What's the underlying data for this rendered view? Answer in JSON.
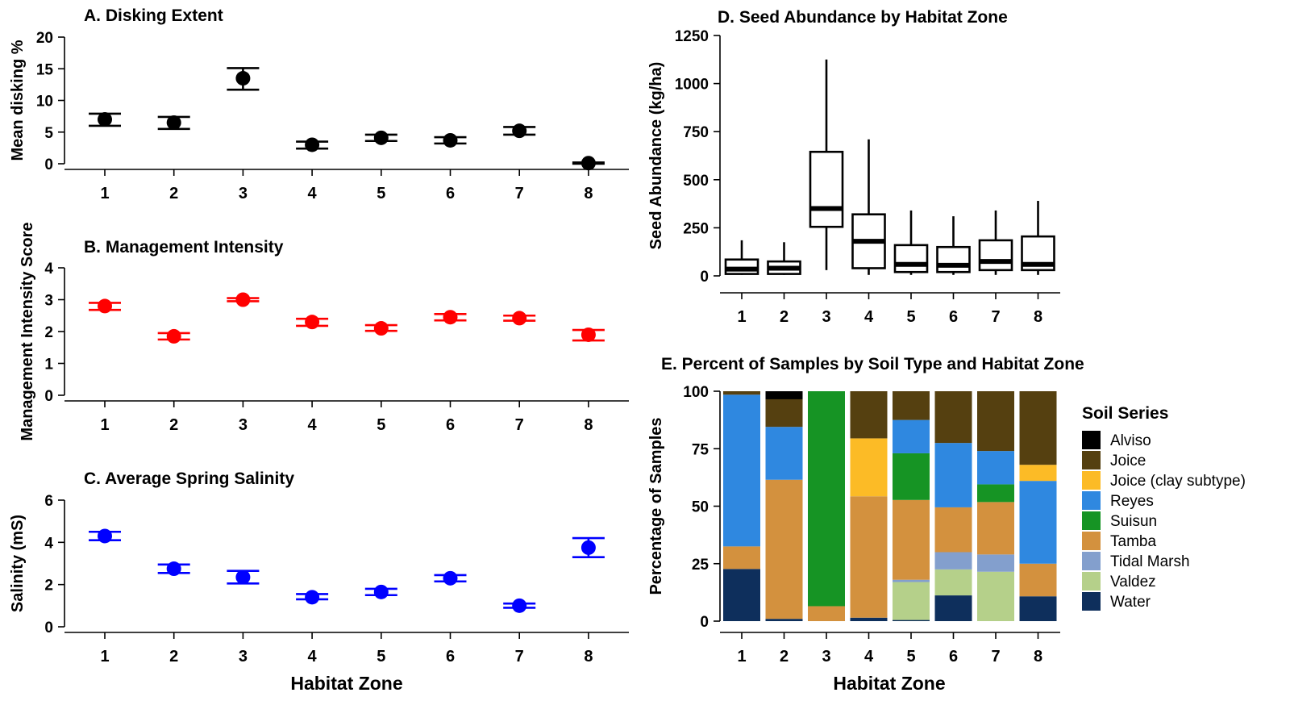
{
  "chart_data": [
    {
      "id": "A",
      "type": "scatter",
      "title": "A. Disking Extent",
      "xlabel": "",
      "ylabel": "Mean disking %",
      "categories": [
        "1",
        "2",
        "3",
        "4",
        "5",
        "6",
        "7",
        "8"
      ],
      "y_ticks": [
        "0",
        "5",
        "10",
        "15",
        "20"
      ],
      "ylim": [
        0,
        20
      ],
      "color": "#000000",
      "points": [
        {
          "x": "1",
          "mean": 7.0,
          "lo": 6.0,
          "hi": 7.9
        },
        {
          "x": "2",
          "mean": 6.5,
          "lo": 5.5,
          "hi": 7.4
        },
        {
          "x": "3",
          "mean": 13.5,
          "lo": 11.7,
          "hi": 15.1
        },
        {
          "x": "4",
          "mean": 3.0,
          "lo": 2.4,
          "hi": 3.5
        },
        {
          "x": "5",
          "mean": 4.1,
          "lo": 3.6,
          "hi": 4.6
        },
        {
          "x": "6",
          "mean": 3.7,
          "lo": 3.2,
          "hi": 4.2
        },
        {
          "x": "7",
          "mean": 5.2,
          "lo": 4.6,
          "hi": 5.8
        },
        {
          "x": "8",
          "mean": 0.1,
          "lo": 0.0,
          "hi": 0.2
        }
      ]
    },
    {
      "id": "B",
      "type": "scatter",
      "title": "B. Management Intensity",
      "xlabel": "",
      "ylabel": "Management Intensity Score",
      "categories": [
        "1",
        "2",
        "3",
        "4",
        "5",
        "6",
        "7",
        "8"
      ],
      "y_ticks": [
        "0",
        "1",
        "2",
        "3",
        "4"
      ],
      "ylim": [
        0,
        4
      ],
      "color": "#ff0000",
      "points": [
        {
          "x": "1",
          "mean": 2.8,
          "lo": 2.68,
          "hi": 2.9
        },
        {
          "x": "2",
          "mean": 1.85,
          "lo": 1.75,
          "hi": 1.95
        },
        {
          "x": "3",
          "mean": 3.0,
          "lo": 2.95,
          "hi": 3.05
        },
        {
          "x": "4",
          "mean": 2.3,
          "lo": 2.18,
          "hi": 2.4
        },
        {
          "x": "5",
          "mean": 2.1,
          "lo": 2.02,
          "hi": 2.2
        },
        {
          "x": "6",
          "mean": 2.45,
          "lo": 2.35,
          "hi": 2.55
        },
        {
          "x": "7",
          "mean": 2.42,
          "lo": 2.34,
          "hi": 2.5
        },
        {
          "x": "8",
          "mean": 1.9,
          "lo": 1.72,
          "hi": 2.05
        }
      ]
    },
    {
      "id": "C",
      "type": "scatter",
      "title": "C. Average Spring Salinity",
      "xlabel": "Habitat Zone",
      "ylabel": "Salinity (mS)",
      "categories": [
        "1",
        "2",
        "3",
        "4",
        "5",
        "6",
        "7",
        "8"
      ],
      "y_ticks": [
        "0",
        "2",
        "4",
        "6"
      ],
      "ylim": [
        0,
        6
      ],
      "color": "#0000ff",
      "points": [
        {
          "x": "1",
          "mean": 4.3,
          "lo": 4.1,
          "hi": 4.5
        },
        {
          "x": "2",
          "mean": 2.75,
          "lo": 2.55,
          "hi": 2.95
        },
        {
          "x": "3",
          "mean": 2.35,
          "lo": 2.05,
          "hi": 2.65
        },
        {
          "x": "4",
          "mean": 1.4,
          "lo": 1.3,
          "hi": 1.55
        },
        {
          "x": "5",
          "mean": 1.65,
          "lo": 1.5,
          "hi": 1.8
        },
        {
          "x": "6",
          "mean": 2.3,
          "lo": 2.15,
          "hi": 2.45
        },
        {
          "x": "7",
          "mean": 1.0,
          "lo": 0.9,
          "hi": 1.1
        },
        {
          "x": "8",
          "mean": 3.75,
          "lo": 3.3,
          "hi": 4.2
        }
      ]
    },
    {
      "id": "D",
      "type": "box",
      "title": "D. Seed Abundance by Habitat Zone",
      "xlabel": "",
      "ylabel": "Seed Abundance (kg/ha)",
      "categories": [
        "1",
        "2",
        "3",
        "4",
        "5",
        "6",
        "7",
        "8"
      ],
      "y_ticks": [
        "0",
        "250",
        "500",
        "750",
        "1000",
        "1250"
      ],
      "ylim": [
        0,
        1250
      ],
      "boxes": [
        {
          "x": "1",
          "min": 5,
          "q1": 10,
          "median": 35,
          "q3": 85,
          "max": 185
        },
        {
          "x": "2",
          "min": 5,
          "q1": 10,
          "median": 40,
          "q3": 75,
          "max": 175
        },
        {
          "x": "3",
          "min": 30,
          "q1": 255,
          "median": 350,
          "q3": 645,
          "max": 1125
        },
        {
          "x": "4",
          "min": 5,
          "q1": 40,
          "median": 180,
          "q3": 320,
          "max": 710
        },
        {
          "x": "5",
          "min": 5,
          "q1": 20,
          "median": 60,
          "q3": 160,
          "max": 340
        },
        {
          "x": "6",
          "min": 5,
          "q1": 20,
          "median": 55,
          "q3": 150,
          "max": 310
        },
        {
          "x": "7",
          "min": 5,
          "q1": 30,
          "median": 75,
          "q3": 185,
          "max": 340
        },
        {
          "x": "8",
          "min": 5,
          "q1": 30,
          "median": 60,
          "q3": 205,
          "max": 390
        }
      ]
    },
    {
      "id": "E",
      "type": "bar",
      "stacked": true,
      "title": "E. Percent of Samples by Soil Type and Habitat Zone",
      "xlabel": "Habitat Zone",
      "ylabel": "Percentage of Samples",
      "categories": [
        "1",
        "2",
        "3",
        "4",
        "5",
        "6",
        "7",
        "8"
      ],
      "y_ticks": [
        "0",
        "25",
        "50",
        "75",
        "100"
      ],
      "ylim": [
        0,
        100
      ],
      "legend_title": "Soil Series",
      "legend_position": "right",
      "series": [
        {
          "name": "Water",
          "color": "#0e2f5c",
          "values": [
            22.7,
            1.0,
            0,
            1.5,
            0.5,
            11.2,
            0,
            10.8
          ]
        },
        {
          "name": "Valdez",
          "color": "#b5d08a",
          "values": [
            0,
            0,
            0,
            0,
            16.5,
            11.3,
            21.5,
            0
          ]
        },
        {
          "name": "Tidal Marsh",
          "color": "#839fcd",
          "values": [
            0,
            0,
            0,
            0,
            1.0,
            7.5,
            7.5,
            0
          ]
        },
        {
          "name": "Tamba",
          "color": "#d3913e",
          "values": [
            9.8,
            60.5,
            6.5,
            52.8,
            34.7,
            19.5,
            22.8,
            14.2
          ]
        },
        {
          "name": "Suisun",
          "color": "#169424",
          "values": [
            0,
            0,
            93.5,
            0,
            20.3,
            0,
            7.7,
            0
          ]
        },
        {
          "name": "Reyes",
          "color": "#2f88e0",
          "values": [
            66.0,
            23.0,
            0,
            0,
            14.5,
            28.0,
            14.5,
            36.0
          ]
        },
        {
          "name": "Joice (clay subtype)",
          "color": "#fcbb26",
          "values": [
            0,
            0,
            0,
            25.2,
            0,
            0,
            0,
            7.0
          ]
        },
        {
          "name": "Joice",
          "color": "#554010",
          "values": [
            1.5,
            12.0,
            0,
            20.5,
            12.5,
            22.5,
            26.0,
            32.0
          ]
        },
        {
          "name": "Alviso",
          "color": "#000000",
          "values": [
            0,
            3.5,
            0,
            0,
            0,
            0,
            0,
            0
          ]
        }
      ],
      "legend_order": [
        "Alviso",
        "Joice",
        "Joice (clay subtype)",
        "Reyes",
        "Suisun",
        "Tamba",
        "Tidal Marsh",
        "Valdez",
        "Water"
      ]
    }
  ]
}
